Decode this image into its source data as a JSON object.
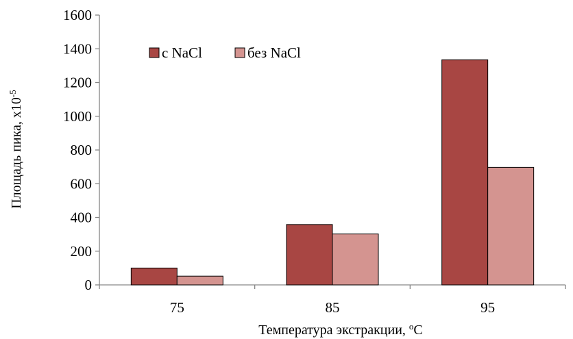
{
  "chart_data": {
    "type": "bar",
    "categories": [
      "75",
      "85",
      "95"
    ],
    "series": [
      {
        "name": "с NaCl",
        "color": "#A84643",
        "values": [
          100,
          358,
          1335
        ]
      },
      {
        "name": "без NaCl",
        "color": "#D49490",
        "values": [
          52,
          302,
          697
        ]
      }
    ],
    "xlabel": "Температура экстракции, ",
    "xlabel_sup": "o",
    "xlabel_tail": "C",
    "ylabel": "Площадь пика, х10",
    "ylabel_sup": "-5",
    "ylim": [
      0,
      1600
    ],
    "yticks": [
      0,
      200,
      400,
      600,
      800,
      1000,
      1200,
      1400,
      1600
    ],
    "grid": false,
    "legend_position": "top-left"
  }
}
